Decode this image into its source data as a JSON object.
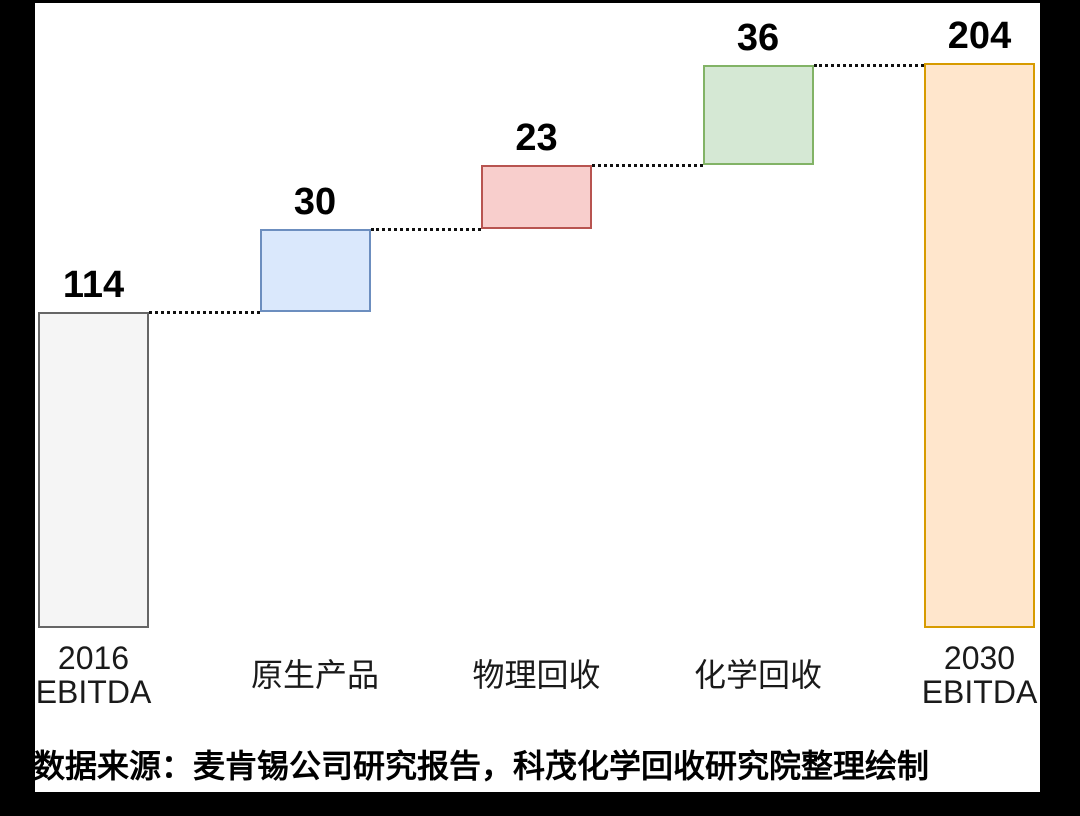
{
  "page": {
    "background_color": "#000000",
    "canvas_color": "#ffffff"
  },
  "chart_data": {
    "type": "bar",
    "subtype": "waterfall",
    "title": "",
    "xlabel": "",
    "ylabel": "",
    "ylim": [
      0,
      285
    ],
    "grid": false,
    "connector_color": "#111111",
    "categories": [
      "2016 EBITDA",
      "原生产品",
      "物理回收",
      "化学回收",
      "2030 EBITDA"
    ],
    "bars": [
      {
        "category_lines": [
          "2016",
          "EBITDA"
        ],
        "value": 114,
        "kind": "total",
        "fill": "#f5f5f5",
        "stroke": "#666666"
      },
      {
        "category_lines": [
          "原生产品"
        ],
        "value": 30,
        "kind": "delta",
        "fill": "#dae8fc",
        "stroke": "#6c8ebf"
      },
      {
        "category_lines": [
          "物理回收"
        ],
        "value": 23,
        "kind": "delta",
        "fill": "#f8cecc",
        "stroke": "#b85450"
      },
      {
        "category_lines": [
          "化学回收"
        ],
        "value": 36,
        "kind": "delta",
        "fill": "#d5e8d4",
        "stroke": "#82b366"
      },
      {
        "category_lines": [
          "2030",
          "EBITDA"
        ],
        "value": 204,
        "kind": "total",
        "fill": "#ffe6cc",
        "stroke": "#d79b00"
      }
    ]
  },
  "source_note": "数据来源：麦肯锡公司研究报告，科茂化学回收研究院整理绘制"
}
